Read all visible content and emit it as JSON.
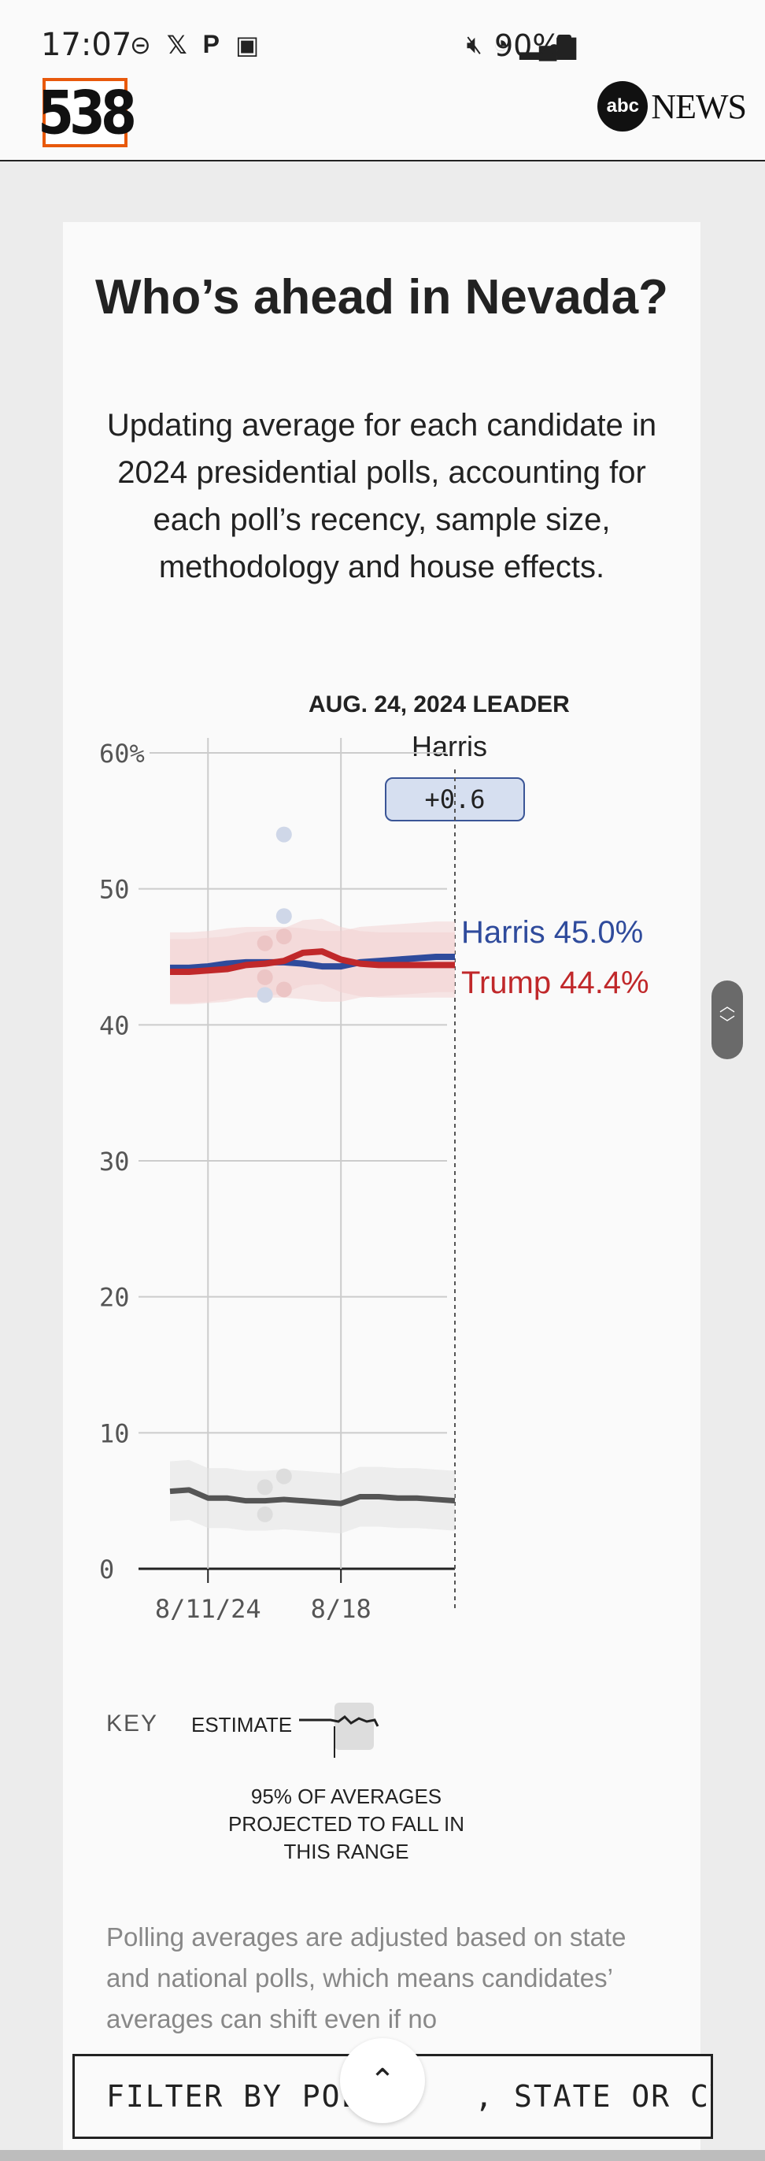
{
  "status_bar": {
    "time": "17:07",
    "left_icons": [
      "do-not-disturb-icon",
      "x-icon",
      "pinterest-icon",
      "gallery-icon"
    ],
    "right_icons": [
      "mute-icon",
      "wifi-icon",
      "signal-icon"
    ],
    "battery": "90%"
  },
  "header": {
    "logo_538": "538",
    "abc_mark": "abc",
    "abc_news": "NEWS"
  },
  "card": {
    "title": "Who’s ahead in Nevada?",
    "subtitle": "Updating average for each candidate in 2024 presidential polls, accounting for each poll’s recency, sample size, methodology and house effects."
  },
  "chart_data": {
    "type": "line",
    "leader_date_label": "AUG. 24, 2024 LEADER",
    "leader_name": "Harris",
    "leader_margin": "+0.6",
    "ylim": [
      0,
      60
    ],
    "y_ticks": [
      "60%",
      "50",
      "40",
      "30",
      "20",
      "10",
      "0"
    ],
    "x_ticks": [
      "8/11/24",
      "8/18"
    ],
    "x": [
      "8/9",
      "8/10",
      "8/11",
      "8/12",
      "8/13",
      "8/14",
      "8/15",
      "8/16",
      "8/17",
      "8/18",
      "8/19",
      "8/20",
      "8/21",
      "8/22",
      "8/23",
      "8/24"
    ],
    "series": [
      {
        "name": "Harris",
        "color": "#2f4b9c",
        "end_label": "Harris 45.0%",
        "values": [
          44.2,
          44.2,
          44.3,
          44.5,
          44.6,
          44.6,
          44.6,
          44.5,
          44.3,
          44.3,
          44.6,
          44.7,
          44.8,
          44.9,
          45.0,
          45.0
        ]
      },
      {
        "name": "Trump",
        "color": "#c0282a",
        "end_label": "Trump 44.4%",
        "values": [
          43.9,
          43.9,
          44.0,
          44.1,
          44.4,
          44.5,
          44.7,
          45.3,
          45.4,
          44.8,
          44.5,
          44.4,
          44.4,
          44.4,
          44.4,
          44.4
        ]
      },
      {
        "name": "",
        "color": "#555555",
        "values": [
          5.7,
          5.8,
          5.2,
          5.2,
          5.0,
          5.0,
          5.1,
          5.0,
          4.9,
          4.8,
          5.3,
          5.3,
          5.2,
          5.2,
          5.1,
          5.0
        ]
      }
    ],
    "polls": [
      {
        "x": "8/15",
        "y": 54,
        "color": "#cfd7e8"
      },
      {
        "x": "8/15",
        "y": 48,
        "color": "#cfd7e8"
      },
      {
        "x": "8/15",
        "y": 46.5,
        "color": "#ecc5c5"
      },
      {
        "x": "8/14",
        "y": 46,
        "color": "#ecc5c5"
      },
      {
        "x": "8/14",
        "y": 43.5,
        "color": "#ecc5c5"
      },
      {
        "x": "8/14",
        "y": 42.2,
        "color": "#cfd7e8"
      },
      {
        "x": "8/15",
        "y": 42.6,
        "color": "#ecc5c5"
      },
      {
        "x": "8/14",
        "y": 6.0,
        "color": "#dddddd"
      },
      {
        "x": "8/15",
        "y": 6.8,
        "color": "#dddddd"
      },
      {
        "x": "8/14",
        "y": 4.0,
        "color": "#dddddd"
      }
    ],
    "grid": true
  },
  "key": {
    "label": "KEY",
    "estimate": "ESTIMATE",
    "range_note": "95% OF AVERAGES PROJECTED TO FALL IN THIS RANGE"
  },
  "note": "Polling averages are adjusted based on state and national polls, which means candidates’ averages can shift even if no",
  "filter_bar": {
    "label": "FILTER BY POLL",
    "label_rest": ", STATE OR CYCLE",
    "scroll_top_icon": "chevron-up-icon"
  }
}
